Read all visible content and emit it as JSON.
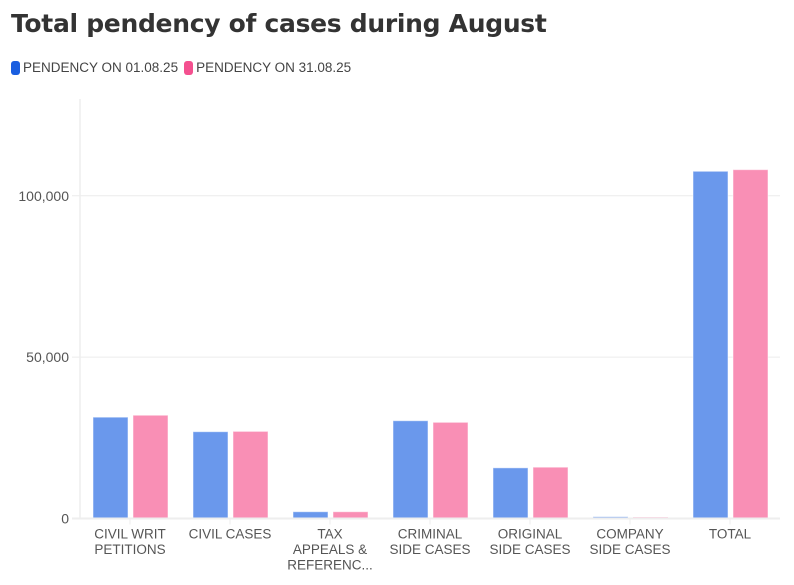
{
  "chart_data": {
    "type": "bar",
    "title": "Total pendency of cases during August",
    "xlabel": "",
    "ylabel": "",
    "ylim": [
      0,
      130000
    ],
    "yticks": [
      0,
      50000,
      100000
    ],
    "ytick_labels": [
      "0",
      "50,000",
      "100,000"
    ],
    "grid": true,
    "legend_position": "top-left",
    "categories": [
      [
        "CIVIL WRIT",
        "PETITIONS"
      ],
      [
        "CIVIL CASES"
      ],
      [
        "TAX",
        "APPEALS &",
        "REFERENC..."
      ],
      [
        "CRIMINAL",
        "SIDE CASES"
      ],
      [
        "ORIGINAL",
        "SIDE CASES"
      ],
      [
        "COMPANY",
        "SIDE CASES"
      ],
      [
        "TOTAL"
      ]
    ],
    "series": [
      {
        "name": "PENDENCY ON 01.08.25",
        "color": "#6a98ec",
        "legend_color": "#1a5ee0",
        "values": [
          31400,
          26900,
          2100,
          30300,
          15700,
          550,
          107600
        ]
      },
      {
        "name": "PENDENCY ON 31.08.25",
        "color": "#f98fb5",
        "legend_color": "#f4508f",
        "values": [
          32000,
          27000,
          2100,
          29800,
          15900,
          450,
          108100
        ]
      }
    ]
  }
}
